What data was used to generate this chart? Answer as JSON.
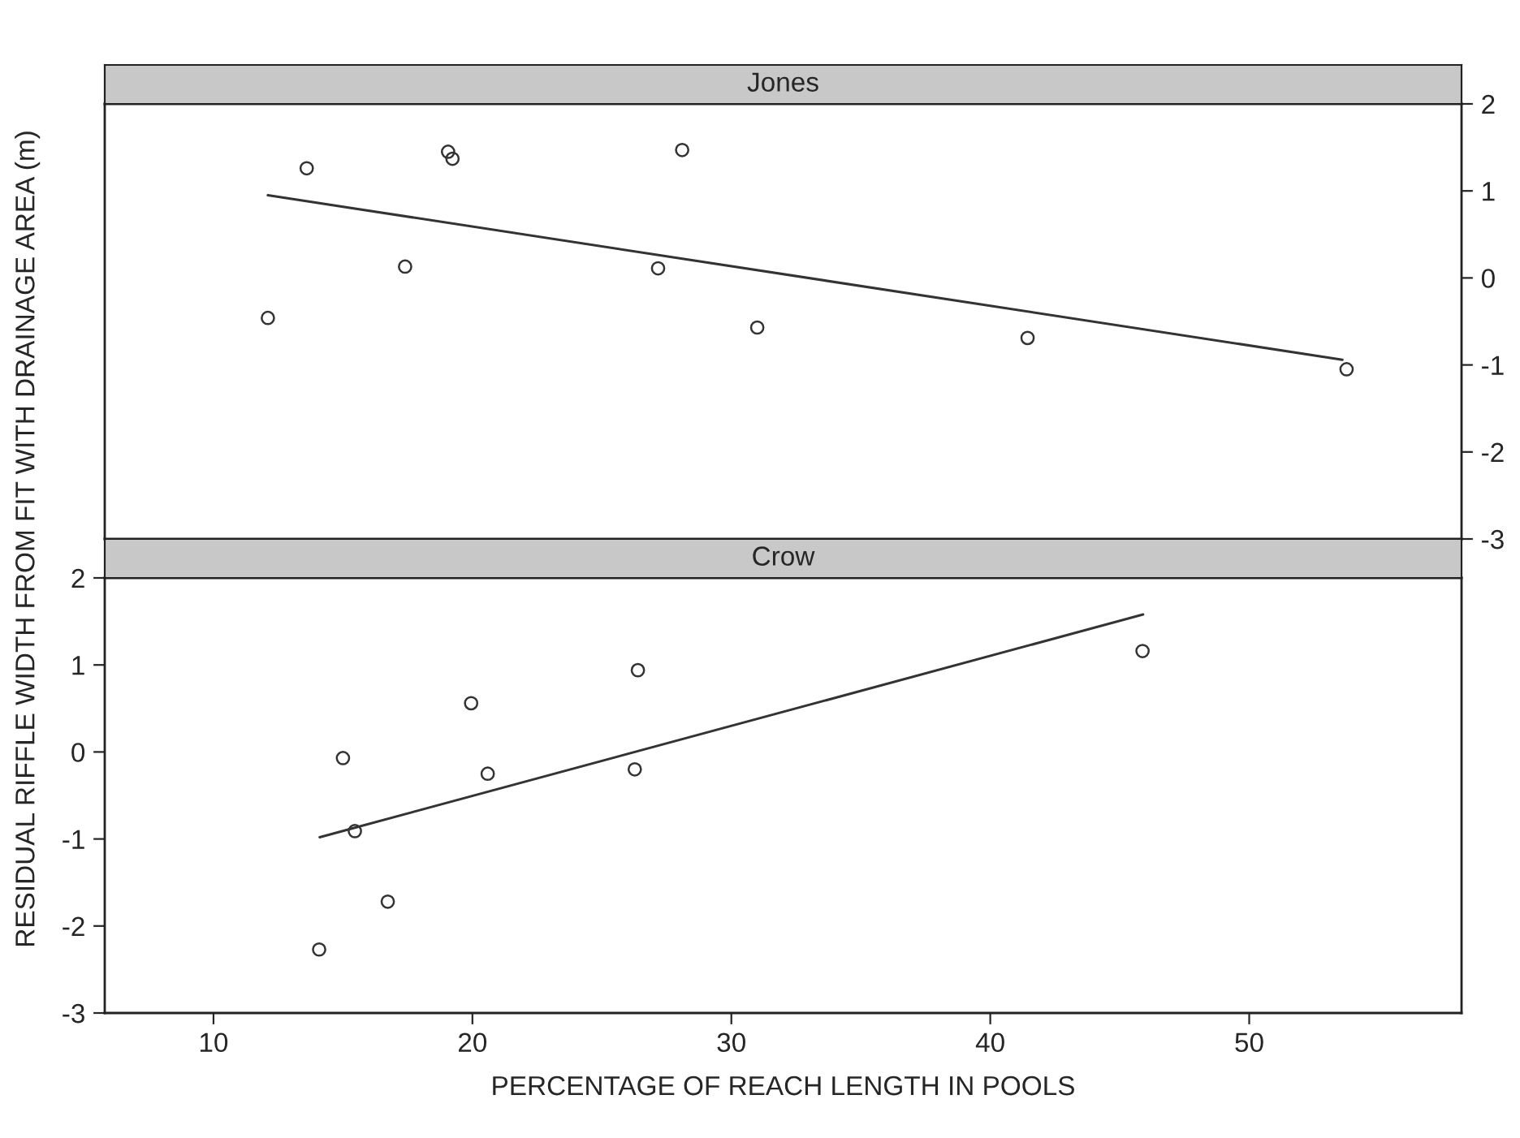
{
  "chart_data": [
    {
      "type": "scatter",
      "title": "Jones",
      "ylabel": "RESIDUAL RIFFLE WIDTH FROM FIT WITH DRAINAGE AREA (m)",
      "xlim": [
        5.8,
        58.2
      ],
      "ylim": [
        -3,
        2
      ],
      "yticks": [
        -3,
        -2,
        -1,
        0,
        1,
        2
      ],
      "tick_labels": "y",
      "grid": false,
      "legend": false,
      "series": [
        {
          "marker": "circle",
          "color": "#333333",
          "x": [
            12.1,
            13.6,
            17.4,
            19.06,
            19.23,
            27.17,
            28.1,
            31.0,
            41.44,
            53.76
          ],
          "values": [
            -0.46,
            1.26,
            0.13,
            1.45,
            1.37,
            0.11,
            1.47,
            -0.57,
            -0.69,
            -1.05
          ]
        },
        {
          "type": "line",
          "marker": "none",
          "color": "#333333",
          "x": [
            12.1,
            53.6
          ],
          "values": [
            0.95,
            -0.94
          ]
        }
      ]
    },
    {
      "type": "scatter",
      "title": "Crow",
      "xlabel": "PERCENTAGE OF REACH LENGTH IN POOLS",
      "xlim": [
        5.8,
        58.2
      ],
      "xticks": [
        10,
        20,
        30,
        40,
        50
      ],
      "ylim": [
        -3,
        2
      ],
      "yticks": [
        -3,
        -2,
        -1,
        0,
        1,
        2
      ],
      "grid": false,
      "legend": false,
      "series": [
        {
          "marker": "circle",
          "color": "#333333",
          "x": [
            14.08,
            15.0,
            15.46,
            16.73,
            19.95,
            20.59,
            26.27,
            26.39,
            45.88
          ],
          "values": [
            -2.27,
            -0.07,
            -0.91,
            -1.72,
            0.56,
            -0.25,
            -0.2,
            0.94,
            1.16
          ]
        },
        {
          "type": "line",
          "marker": "none",
          "color": "#333333",
          "x": [
            14.1,
            45.9
          ],
          "values": [
            -0.98,
            1.58
          ]
        }
      ]
    }
  ]
}
